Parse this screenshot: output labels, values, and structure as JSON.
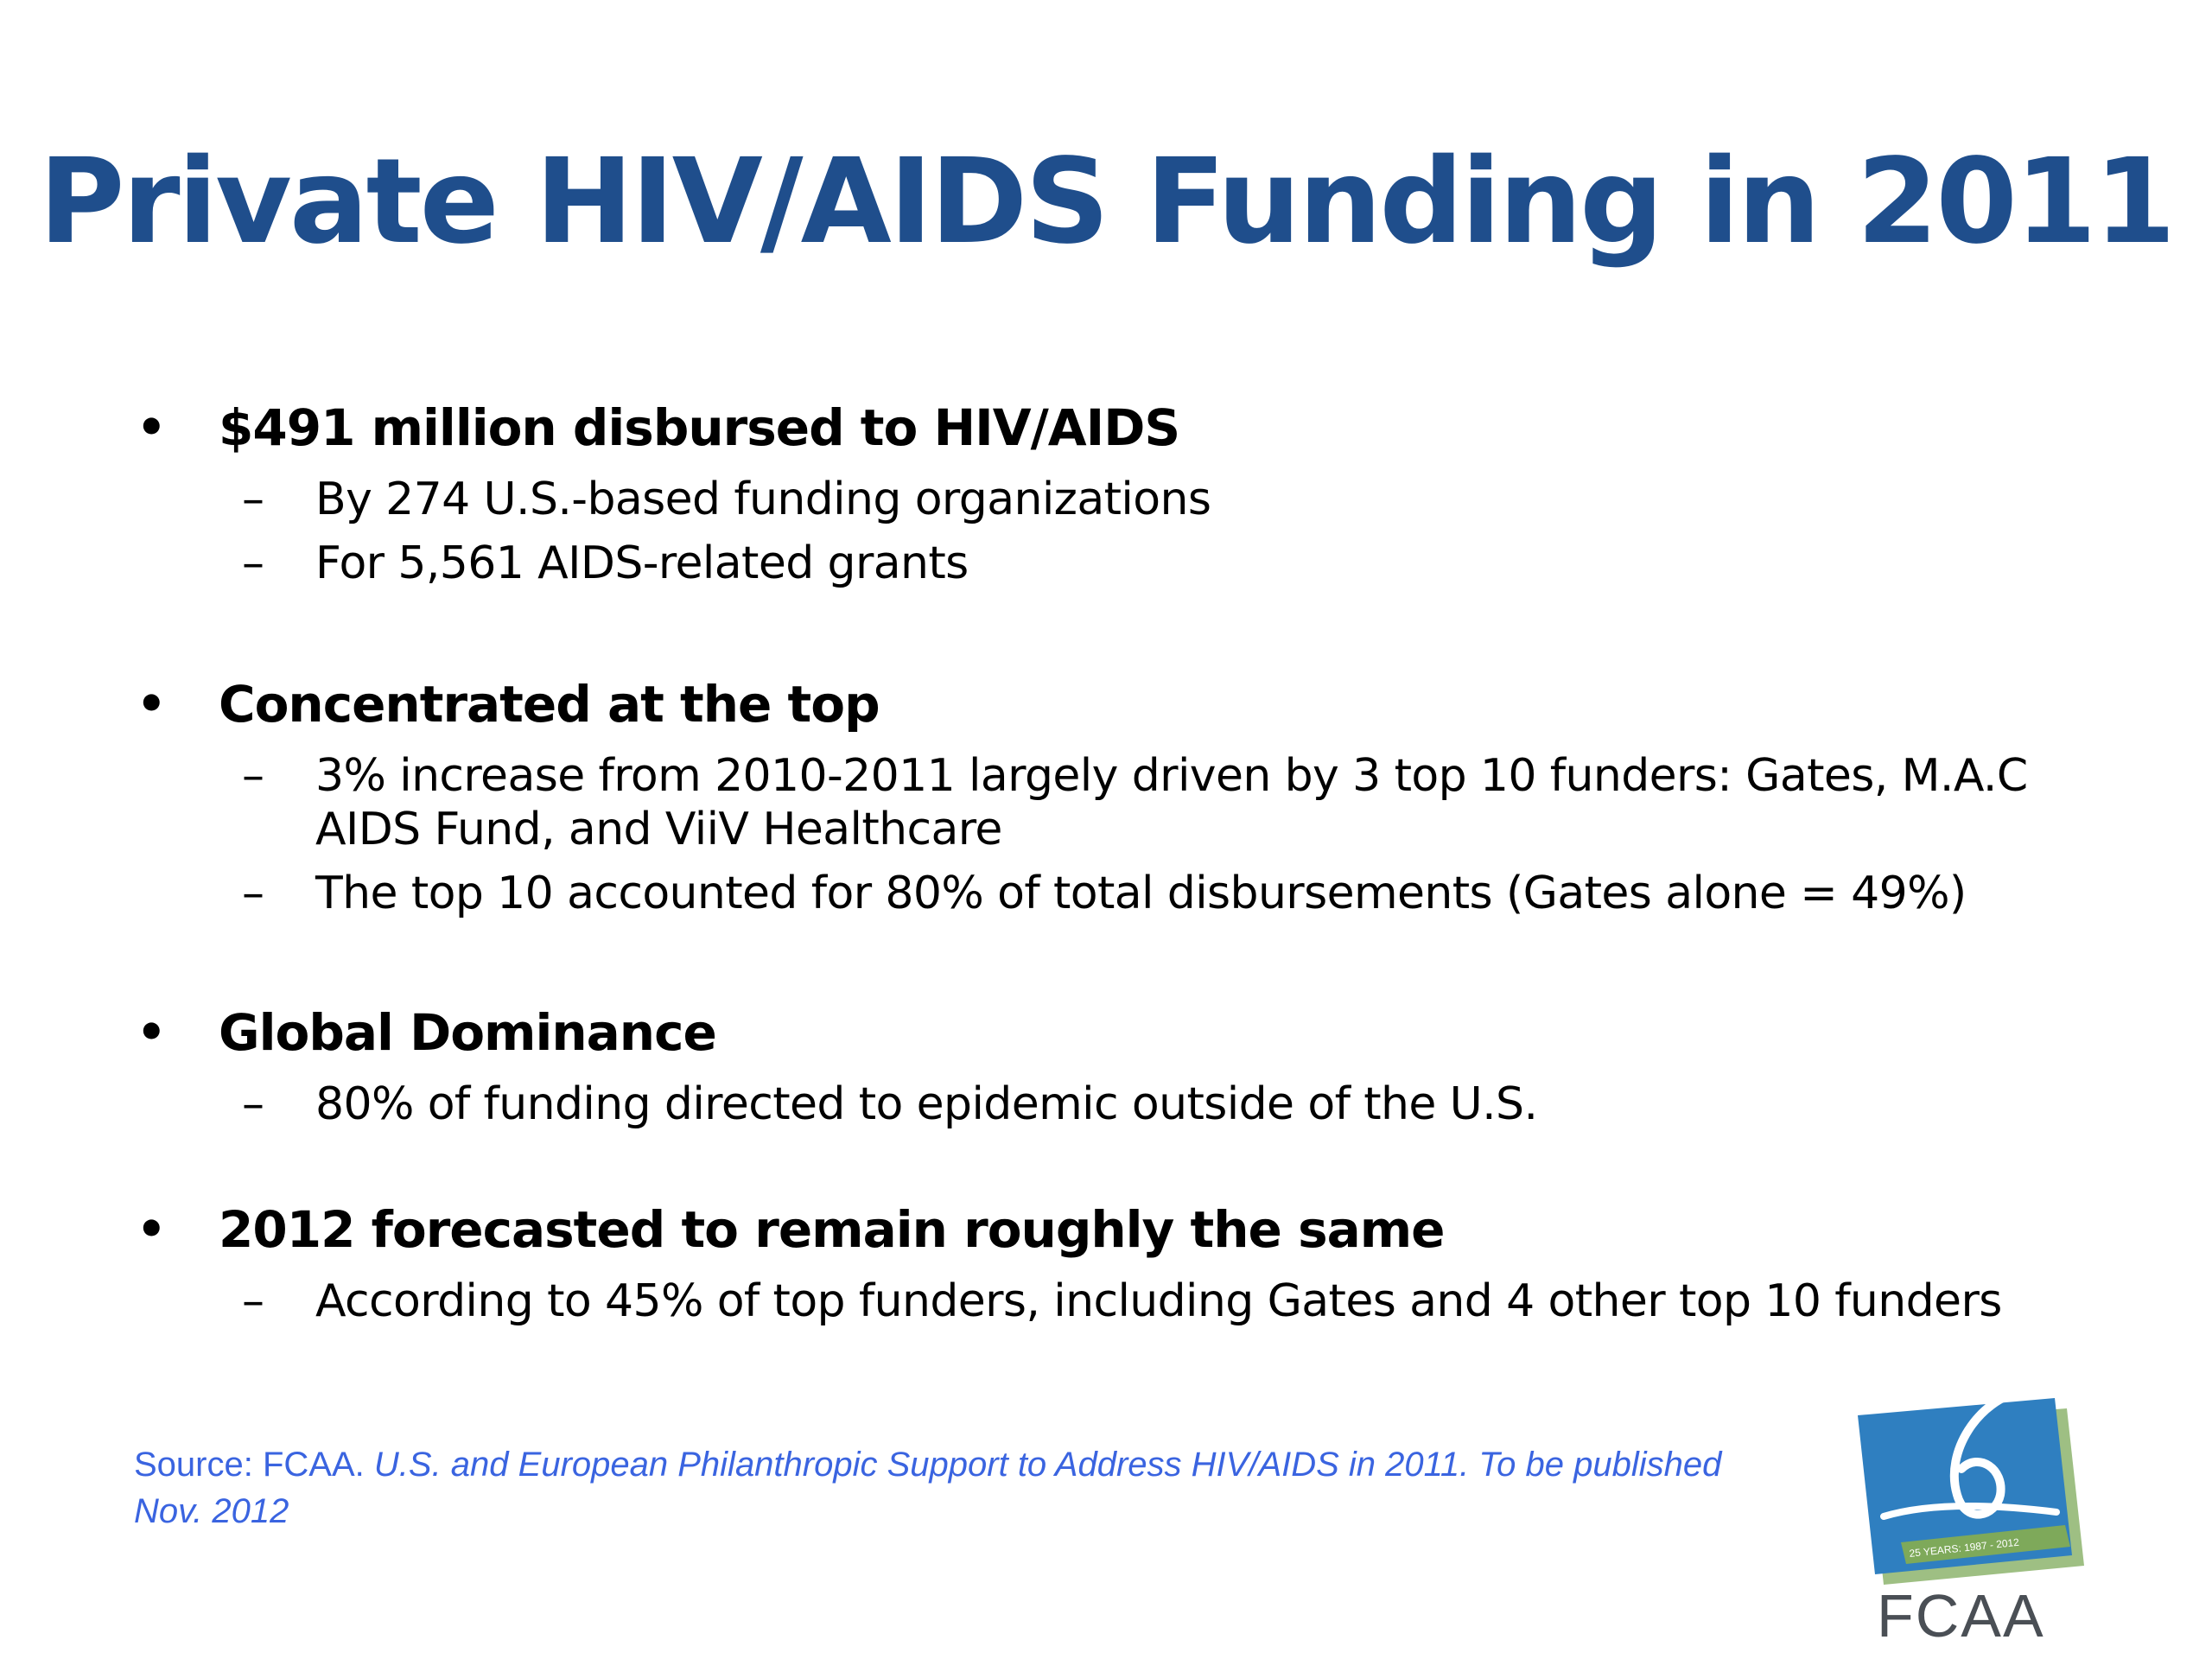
{
  "slide": {
    "title": "Private HIV/AIDS Funding in 2011",
    "bullet_glyph": "•",
    "dash_glyph": "–",
    "bullets": [
      {
        "heading": "$491 million disbursed to HIV/AIDS",
        "subs": [
          "By 274 U.S.-based funding organizations",
          "For 5,561 AIDS-related grants"
        ]
      },
      {
        "heading": "Concentrated at the top",
        "subs": [
          "3% increase from 2010-2011 largely driven by 3 top 10 funders: Gates, M.A.C AIDS Fund, and ViiV Healthcare",
          "The top 10 accounted for 80% of total disbursements (Gates alone = 49%)"
        ]
      },
      {
        "heading": "Global Dominance",
        "subs": [
          "80% of funding directed to epidemic outside of the U.S."
        ]
      },
      {
        "heading": "2012 forecasted to remain roughly the same",
        "subs": [
          "According to 45% of top funders, including Gates and 4 other top 10 funders"
        ]
      }
    ],
    "source": {
      "label": "Source: FCAA.",
      "title": "U.S. and European Philanthropic Support to Address HIV/AIDS in 2011. To be published Nov. 2012"
    },
    "logo": {
      "text": "FCAA",
      "ribbon_text": "25 YEARS: 1987 - 2012"
    }
  },
  "colors": {
    "title": "#1f4e8c",
    "body_text": "#000000",
    "source_text": "#3a64e0",
    "logo_blue": "#2f7fc0",
    "logo_green": "#7ea95a",
    "logo_text": "#4a4f55"
  }
}
